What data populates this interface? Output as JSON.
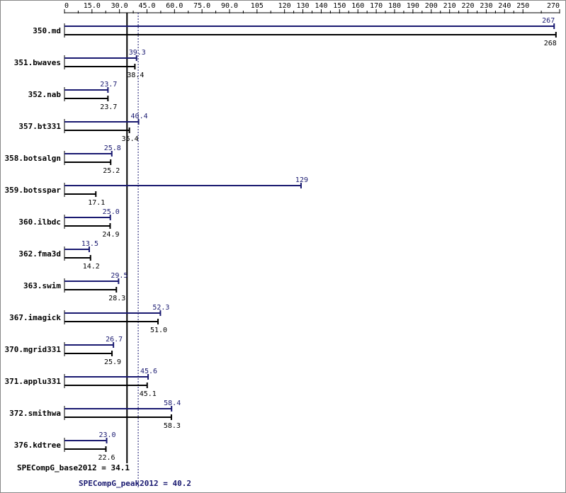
{
  "chart_data": {
    "type": "bar",
    "orientation": "horizontal",
    "xlim": [
      0,
      270
    ],
    "x_ticks": [
      0,
      15.0,
      30.0,
      45.0,
      60.0,
      75.0,
      90.0,
      105,
      120,
      130,
      140,
      150,
      160,
      170,
      180,
      190,
      200,
      210,
      220,
      230,
      240,
      250,
      270
    ],
    "x_tick_labels": [
      "0",
      "15.0",
      "30.0",
      "45.0",
      "60.0",
      "75.0",
      "90.0",
      "105",
      "120",
      "130",
      "140",
      "150",
      "160",
      "170",
      "180",
      "190",
      "200",
      "210",
      "220",
      "230",
      "240",
      "250",
      "270"
    ],
    "categories": [
      "350.md",
      "351.bwaves",
      "352.nab",
      "357.bt331",
      "358.botsalgn",
      "359.botsspar",
      "360.ilbdc",
      "362.fma3d",
      "363.swim",
      "367.imagick",
      "370.mgrid331",
      "371.applu331",
      "372.smithwa",
      "376.kdtree"
    ],
    "series": [
      {
        "name": "peak",
        "color": "#191970",
        "values": [
          267,
          39.3,
          23.7,
          40.4,
          25.8,
          129,
          25.0,
          13.5,
          29.5,
          52.3,
          26.7,
          45.6,
          58.4,
          23.0
        ],
        "labels": [
          "267",
          "39.3",
          "23.7",
          "40.4",
          "25.8",
          "129",
          "25.0",
          "13.5",
          "29.5",
          "52.3",
          "26.7",
          "45.6",
          "58.4",
          "23.0"
        ]
      },
      {
        "name": "base",
        "color": "#000000",
        "values": [
          268,
          38.4,
          23.7,
          35.4,
          25.2,
          17.1,
          24.9,
          14.2,
          28.3,
          51.0,
          25.9,
          45.1,
          58.3,
          22.6
        ],
        "labels": [
          "268",
          "38.4",
          "23.7",
          "35.4",
          "25.2",
          "17.1",
          "24.9",
          "14.2",
          "28.3",
          "51.0",
          "25.9",
          "45.1",
          "58.3",
          "22.6"
        ]
      }
    ],
    "reference_lines": [
      {
        "series": "base",
        "value": 34.1,
        "style": "solid",
        "color": "#000000"
      },
      {
        "series": "peak",
        "value": 40.2,
        "style": "dotted",
        "color": "#191970"
      }
    ],
    "summary": {
      "base_text": "SPECompG_base2012 = 34.1",
      "peak_text": "SPECompG_peak2012 = 40.2"
    },
    "legend": "none",
    "grid": false
  }
}
